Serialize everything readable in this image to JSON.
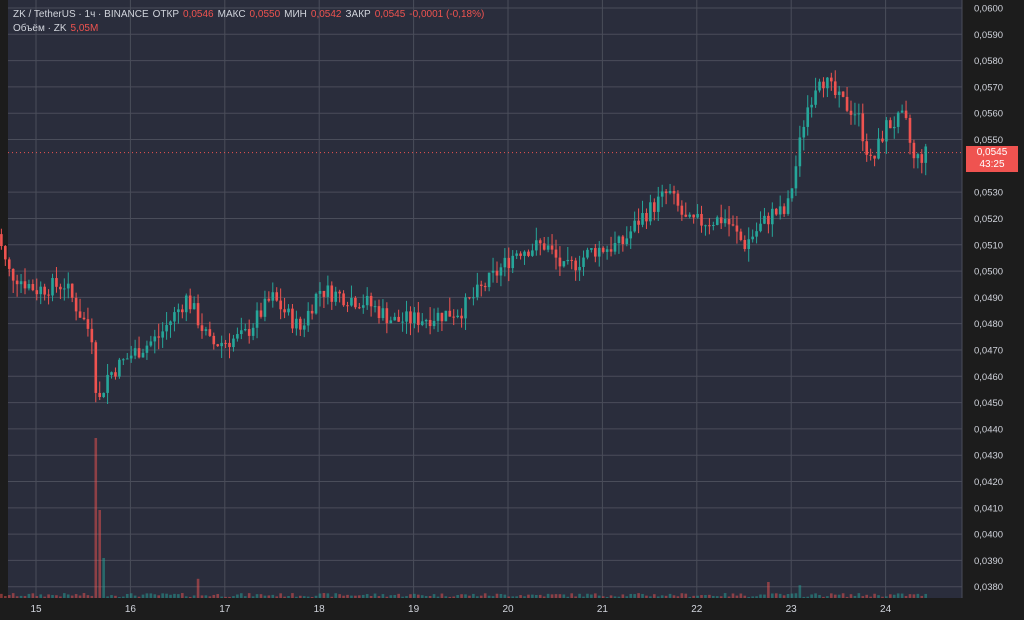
{
  "header": {
    "symbol": "ZK / TetherUS · 1ч · BINANCE",
    "open_label": "ОТКР",
    "open": "0,0546",
    "high_label": "МАКС",
    "high": "0,0550",
    "low_label": "МИН",
    "low": "0,0542",
    "close_label": "ЗАКР",
    "close": "0,0545",
    "change": "-0,0001 (-0,18%)",
    "volume_label": "Объём · ZK",
    "volume": "5,05M"
  },
  "price_tag": {
    "price": "0,0545",
    "countdown": "43:25"
  },
  "colors": {
    "up": "#26a69a",
    "down": "#ef5350",
    "background": "#2a2d3c",
    "grid": "#4a4d5a",
    "text": "#d1d4dc"
  },
  "chart_data": {
    "type": "candlestick",
    "y_axis_ticks": [
      "0,0380",
      "0,0390",
      "0,0400",
      "0,0410",
      "0,0420",
      "0,0430",
      "0,0440",
      "0,0450",
      "0,0460",
      "0,0470",
      "0,0480",
      "0,0490",
      "0,0500",
      "0,0510",
      "0,0520",
      "0,0530",
      "0,0550",
      "0,0560",
      "0,0570",
      "0,0580",
      "0,0590",
      "0,0600"
    ],
    "x_axis_ticks": [
      "15",
      "16",
      "17",
      "18",
      "19",
      "20",
      "21",
      "22",
      "23",
      "24"
    ],
    "ylim": [
      0.0378,
      0.06
    ],
    "current_price": 0.0545,
    "price_anchors": [
      {
        "day": 14.55,
        "price": 0.052
      },
      {
        "day": 14.7,
        "price": 0.05
      },
      {
        "day": 15.0,
        "price": 0.0493
      },
      {
        "day": 15.3,
        "price": 0.0495
      },
      {
        "day": 15.6,
        "price": 0.0475
      },
      {
        "day": 15.65,
        "price": 0.0448
      },
      {
        "day": 15.75,
        "price": 0.046
      },
      {
        "day": 16.0,
        "price": 0.0468
      },
      {
        "day": 16.3,
        "price": 0.0475
      },
      {
        "day": 16.6,
        "price": 0.049
      },
      {
        "day": 16.85,
        "price": 0.0472
      },
      {
        "day": 17.2,
        "price": 0.0475
      },
      {
        "day": 17.5,
        "price": 0.049
      },
      {
        "day": 17.8,
        "price": 0.0478
      },
      {
        "day": 18.0,
        "price": 0.0493
      },
      {
        "day": 18.5,
        "price": 0.0488
      },
      {
        "day": 18.8,
        "price": 0.0481
      },
      {
        "day": 19.1,
        "price": 0.0482
      },
      {
        "day": 19.5,
        "price": 0.0485
      },
      {
        "day": 19.9,
        "price": 0.05
      },
      {
        "day": 20.1,
        "price": 0.0508
      },
      {
        "day": 20.4,
        "price": 0.051
      },
      {
        "day": 20.6,
        "price": 0.05
      },
      {
        "day": 20.9,
        "price": 0.0508
      },
      {
        "day": 21.2,
        "price": 0.051
      },
      {
        "day": 21.4,
        "price": 0.052
      },
      {
        "day": 21.7,
        "price": 0.053
      },
      {
        "day": 21.9,
        "price": 0.0518
      },
      {
        "day": 22.3,
        "price": 0.052
      },
      {
        "day": 22.5,
        "price": 0.051
      },
      {
        "day": 22.8,
        "price": 0.0522
      },
      {
        "day": 22.95,
        "price": 0.0522
      },
      {
        "day": 23.05,
        "price": 0.054
      },
      {
        "day": 23.15,
        "price": 0.056
      },
      {
        "day": 23.3,
        "price": 0.0575
      },
      {
        "day": 23.5,
        "price": 0.0565
      },
      {
        "day": 23.7,
        "price": 0.056
      },
      {
        "day": 23.85,
        "price": 0.054
      },
      {
        "day": 24.0,
        "price": 0.0555
      },
      {
        "day": 24.2,
        "price": 0.0558
      },
      {
        "day": 24.3,
        "price": 0.0542
      },
      {
        "day": 24.45,
        "price": 0.0545
      }
    ],
    "volume_spikes": [
      {
        "day": 15.65,
        "value": 1.0
      },
      {
        "day": 15.68,
        "value": 0.55
      },
      {
        "day": 15.72,
        "value": 0.25
      },
      {
        "day": 16.7,
        "value": 0.12
      },
      {
        "day": 22.75,
        "value": 0.1
      },
      {
        "day": 23.1,
        "value": 0.08
      }
    ]
  }
}
